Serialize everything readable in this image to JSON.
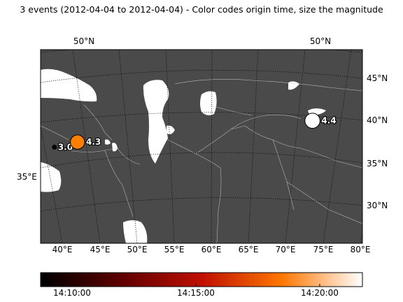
{
  "title": "3 events (2012-04-04 to 2012-04-04) - Color codes origin time, size the magnitude",
  "map": {
    "background_color": "#4a4a4a",
    "land_color": "#ffffff",
    "top_labels": [
      "50°N",
      "50°N"
    ],
    "right_labels": [
      "45°N",
      "40°N",
      "35°N",
      "30°N"
    ],
    "left_labels": [
      "35°E"
    ],
    "bottom_labels": [
      "40°E",
      "45°E",
      "50°E",
      "55°E",
      "60°E",
      "65°E",
      "70°E",
      "75°E",
      "80°E"
    ]
  },
  "events": [
    {
      "lon": 40.5,
      "lat": 37.5,
      "magnitude": "3.0",
      "color": "#0a0000"
    },
    {
      "lon": 43.7,
      "lat": 38.1,
      "magnitude": "4.3",
      "color": "#ff7f00"
    },
    {
      "lon": 75.6,
      "lat": 40.6,
      "magnitude": "4.4",
      "color": "#ffffff"
    }
  ],
  "colorbar": {
    "cmap": "gist_heat",
    "tick_labels": [
      "14:10:00",
      "14:15:00",
      "14:20:00"
    ]
  }
}
